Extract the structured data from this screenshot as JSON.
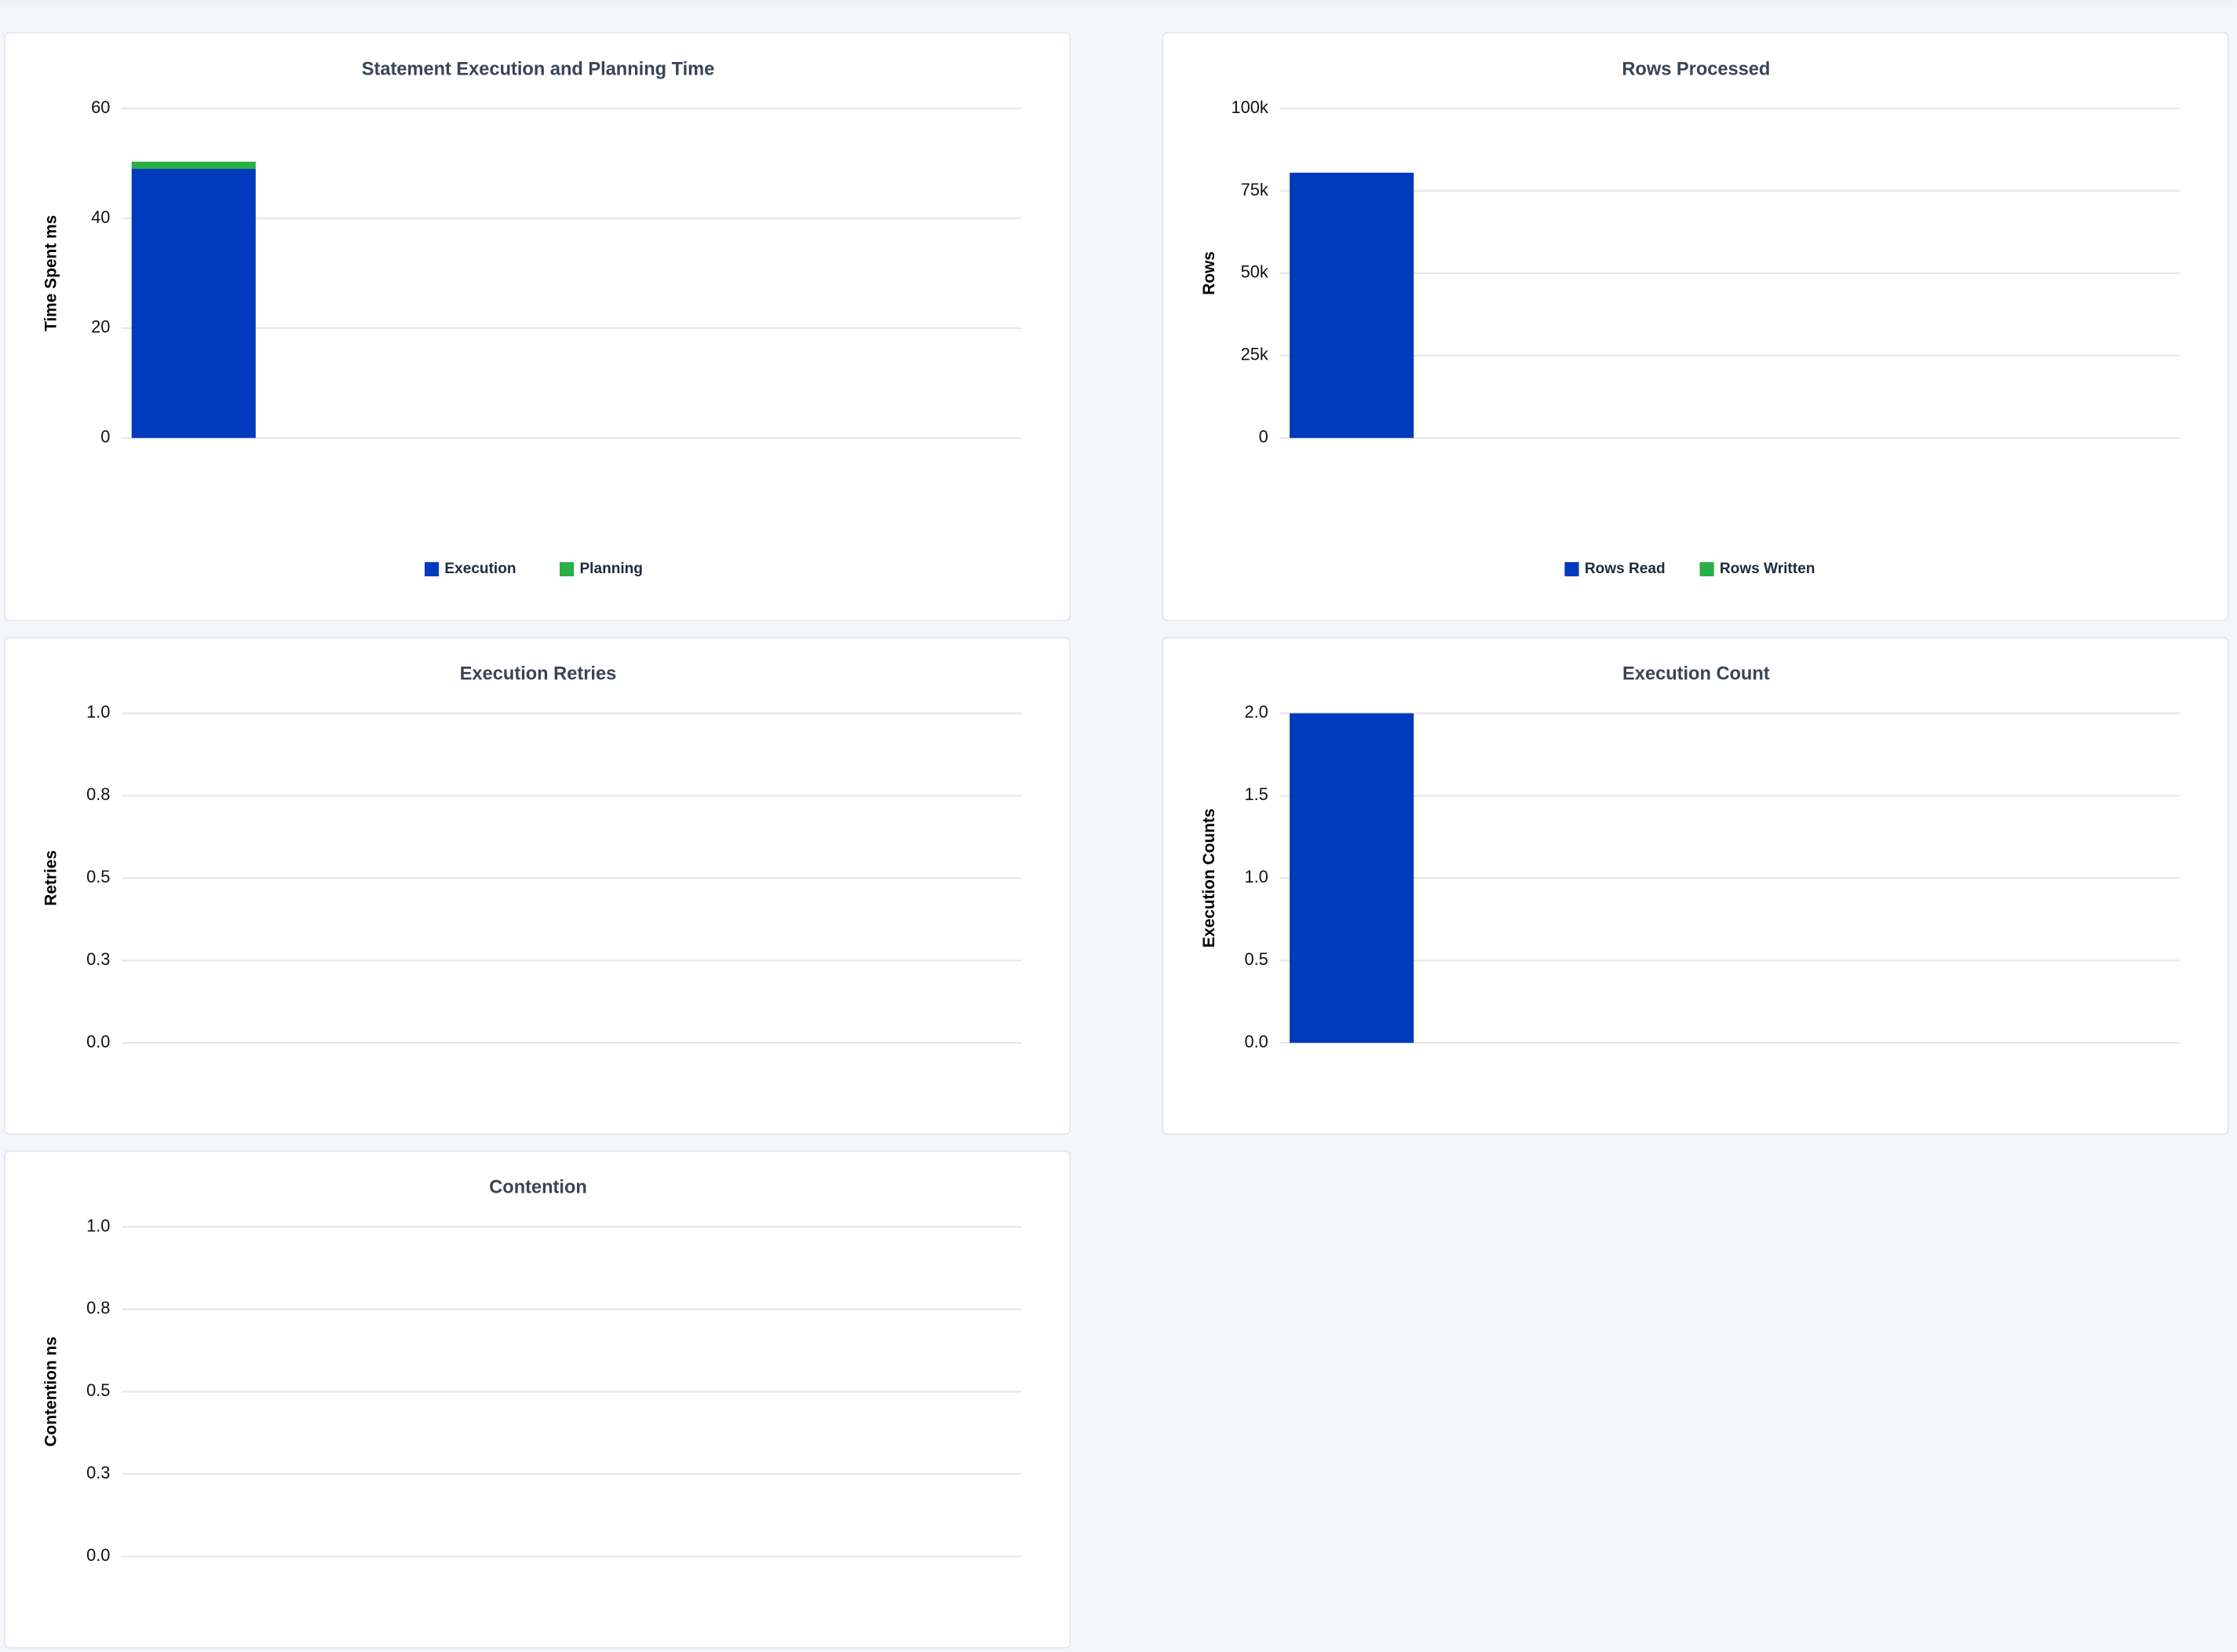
{
  "chart_data": [
    {
      "type": "bar",
      "title": "Statement Execution and Planning Time",
      "y_label": "Time Spent ms",
      "categories": [
        null
      ],
      "series": [
        {
          "name": "Execution",
          "color": "#003bbd",
          "values": [
            49
          ]
        },
        {
          "name": "Planning",
          "color": "#2aaf47",
          "values": [
            1.3
          ]
        }
      ],
      "stacked": true,
      "ylim": [
        0,
        60
      ],
      "yticks": [
        0,
        20,
        40,
        60
      ],
      "grid": true,
      "legend": "bottom"
    },
    {
      "type": "bar",
      "title": "Rows Processed",
      "y_label": "Rows",
      "categories": [
        null
      ],
      "series": [
        {
          "name": "Rows Read",
          "color": "#003bbd",
          "values": [
            80500
          ]
        },
        {
          "name": "Rows Written",
          "color": "#2aaf47",
          "values": [
            0
          ]
        }
      ],
      "stacked": true,
      "ylim": [
        0,
        100000
      ],
      "yticks": [
        0,
        {
          "value": 25000,
          "label": "25k"
        },
        {
          "value": 50000,
          "label": "50k"
        },
        {
          "value": 75000,
          "label": "75k"
        },
        {
          "value": 100000,
          "label": "100k"
        }
      ],
      "grid": true,
      "legend": "bottom"
    },
    {
      "type": "bar",
      "title": "Execution Retries",
      "y_label": "Retries",
      "categories": [
        null
      ],
      "series": [
        {
          "color": "#003bbd",
          "values": [
            0
          ]
        }
      ],
      "ylim": [
        0,
        1
      ],
      "yticks": [
        {
          "value": 0,
          "label": "0.0"
        },
        {
          "value": 0.25,
          "label": "0.3"
        },
        {
          "value": 0.5,
          "label": "0.5"
        },
        {
          "value": 0.75,
          "label": "0.8"
        },
        {
          "value": 1,
          "label": "1.0"
        }
      ],
      "grid": true
    },
    {
      "type": "bar",
      "title": "Execution Count",
      "y_label": "Execution Counts",
      "categories": [
        null
      ],
      "series": [
        {
          "color": "#003bbd",
          "values": [
            2
          ]
        }
      ],
      "ylim": [
        0,
        2
      ],
      "yticks": [
        {
          "value": 0,
          "label": "0.0"
        },
        {
          "value": 0.5,
          "label": "0.5"
        },
        {
          "value": 1,
          "label": "1.0"
        },
        {
          "value": 1.5,
          "label": "1.5"
        },
        {
          "value": 2,
          "label": "2.0"
        }
      ],
      "grid": true
    },
    {
      "type": "bar",
      "title": "Contention",
      "y_label": "Contention ns",
      "categories": [
        null
      ],
      "series": [
        {
          "color": "#003bbd",
          "values": [
            0
          ]
        }
      ],
      "ylim": [
        0,
        1
      ],
      "yticks": [
        {
          "value": 0,
          "label": "0.0"
        },
        {
          "value": 0.25,
          "label": "0.3"
        },
        {
          "value": 0.5,
          "label": "0.5"
        },
        {
          "value": 0.75,
          "label": "0.8"
        },
        {
          "value": 1,
          "label": "1.0"
        }
      ],
      "grid": true
    }
  ]
}
